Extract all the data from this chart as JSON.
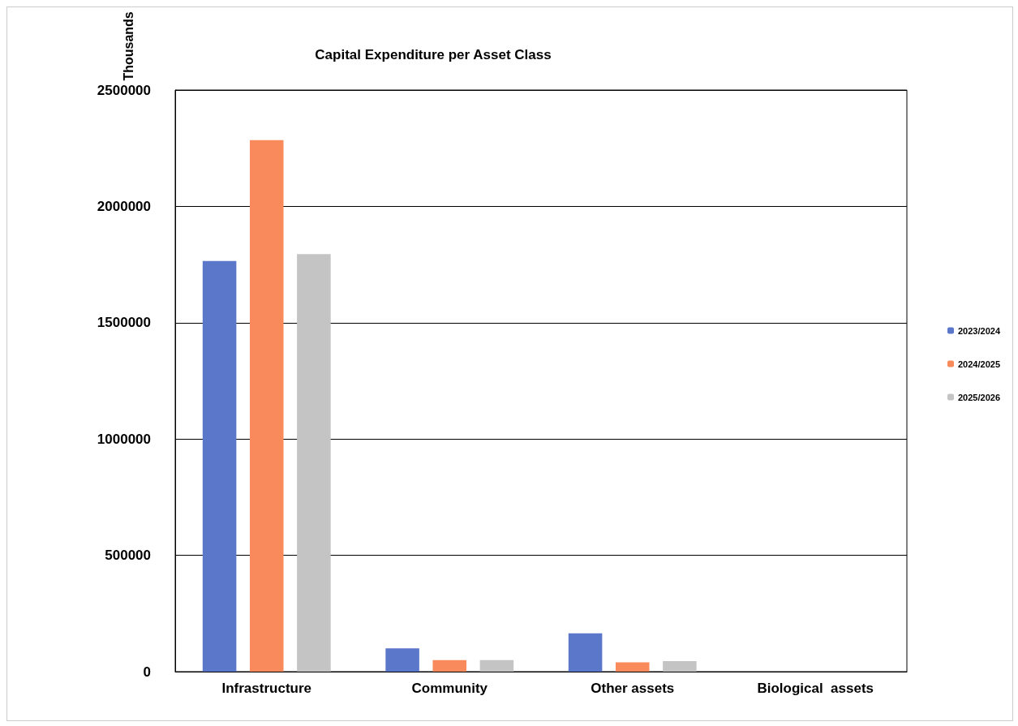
{
  "chart_data": {
    "type": "bar",
    "title": "Capital Expenditure per Asset Class",
    "ylabel": "Thousands",
    "categories": [
      "Infrastructure",
      "Community",
      "Other assets",
      "Biological  assets"
    ],
    "series": [
      {
        "name": "2023/2024",
        "color": "#5b77c9",
        "values": [
          1765000,
          100000,
          165000,
          0
        ]
      },
      {
        "name": "2024/2025",
        "color": "#f98a5c",
        "values": [
          2285000,
          50000,
          40000,
          0
        ]
      },
      {
        "name": "2025/2026",
        "color": "#c4c4c4",
        "values": [
          1795000,
          50000,
          45000,
          0
        ]
      }
    ],
    "ylim": [
      0,
      2500000
    ],
    "yticks": [
      0,
      500000,
      1000000,
      1500000,
      2000000,
      2500000
    ],
    "grid": "y",
    "legend": "right"
  }
}
